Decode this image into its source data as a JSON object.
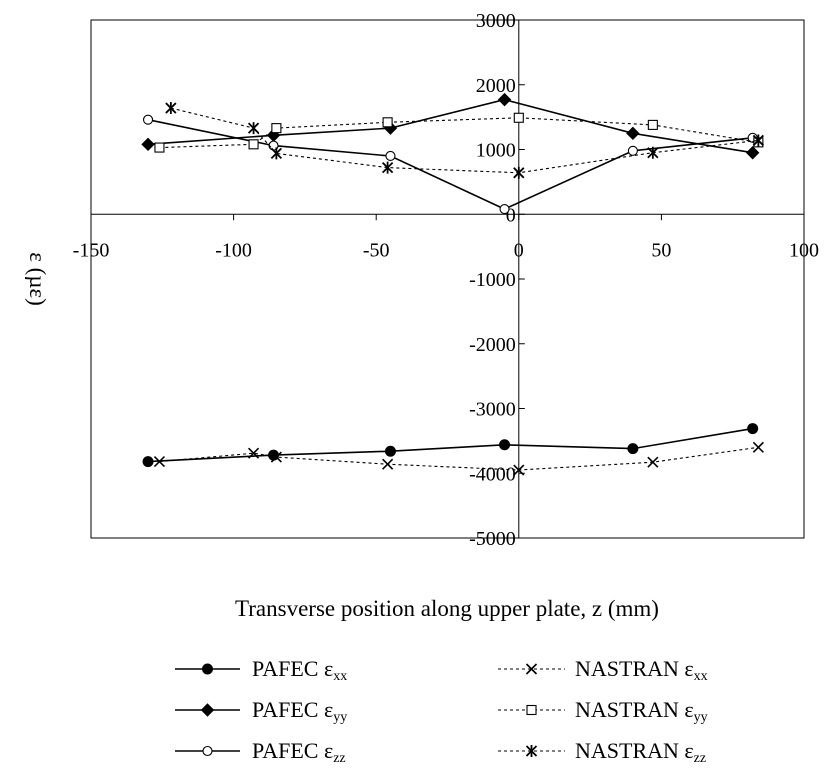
{
  "chart_data": {
    "type": "line",
    "xlabel": "Transverse position along upper plate, z (mm)",
    "ylabel": "ε (µε)",
    "xlim": [
      -150,
      100
    ],
    "ylim": [
      -5000,
      3000
    ],
    "x_ticks": [
      -150,
      -100,
      -50,
      0,
      50,
      100
    ],
    "y_ticks": [
      3000,
      2000,
      1000,
      0,
      -1000,
      -2000,
      -3000,
      -4000,
      -5000
    ],
    "y_tick_labels": [
      "3000",
      "2000",
      "1000",
      "0",
      "-1000",
      "-2000",
      "-3000",
      "-4000",
      "-5000"
    ],
    "grid": false,
    "legend_position": "bottom",
    "series": [
      {
        "name": "PAFEC εxx",
        "label": "PAFEC",
        "sub": "xx",
        "style": "solid",
        "marker": "filled-circle",
        "x": [
          -130,
          -86,
          -45,
          -5,
          40,
          82
        ],
        "y": [
          -3820,
          -3720,
          -3660,
          -3560,
          -3620,
          -3310
        ]
      },
      {
        "name": "PAFEC εyy",
        "label": "PAFEC",
        "sub": "yy",
        "style": "solid",
        "marker": "filled-diamond",
        "x": [
          -130,
          -86,
          -45,
          -5,
          40,
          82
        ],
        "y": [
          1080,
          1220,
          1330,
          1770,
          1250,
          950
        ]
      },
      {
        "name": "PAFEC εzz",
        "label": "PAFEC",
        "sub": "zz",
        "style": "solid",
        "marker": "open-circle",
        "x": [
          -130,
          -86,
          -45,
          -5,
          40,
          82
        ],
        "y": [
          1460,
          1060,
          900,
          80,
          980,
          1180
        ]
      },
      {
        "name": "NASTRAN εxx",
        "label": "NASTRAN",
        "sub": "xx",
        "style": "dashed",
        "marker": "x",
        "x": [
          -126,
          -93,
          -85,
          -46,
          0,
          47,
          84
        ],
        "y": [
          -3820,
          -3690,
          -3750,
          -3860,
          -3950,
          -3830,
          -3600
        ]
      },
      {
        "name": "NASTRAN εyy",
        "label": "NASTRAN",
        "sub": "yy",
        "style": "dashed",
        "marker": "open-square",
        "x": [
          -126,
          -93,
          -85,
          -46,
          0,
          47,
          84
        ],
        "y": [
          1030,
          1080,
          1330,
          1420,
          1490,
          1380,
          1110
        ]
      },
      {
        "name": "NASTRAN εzz",
        "label": "NASTRAN",
        "sub": "zz",
        "style": "dashed",
        "marker": "asterisk",
        "x": [
          -122,
          -93,
          -85,
          -46,
          0,
          47,
          84
        ],
        "y": [
          1640,
          1330,
          940,
          720,
          640,
          950,
          1140
        ]
      }
    ]
  }
}
